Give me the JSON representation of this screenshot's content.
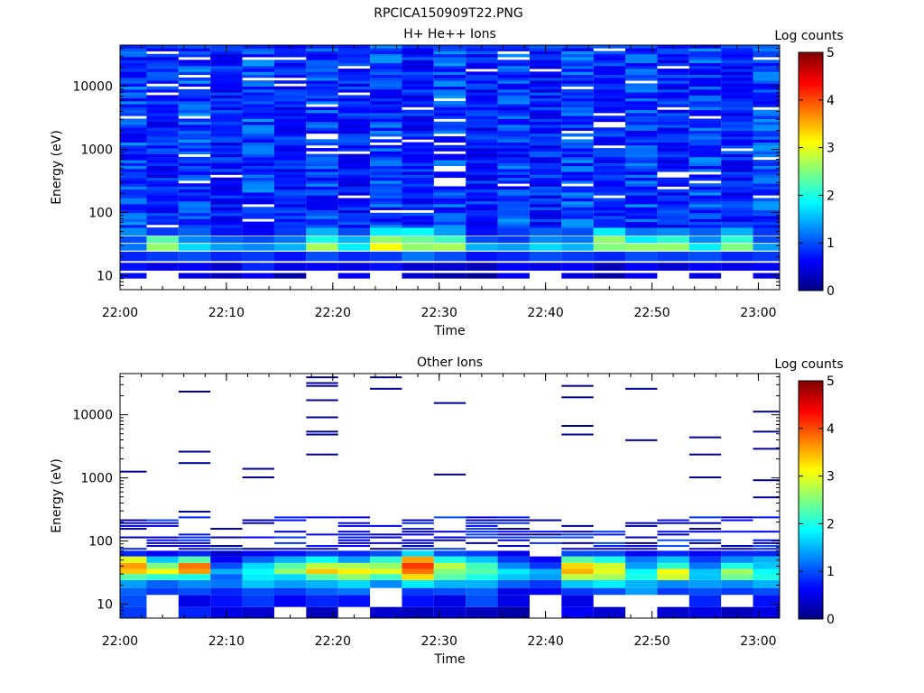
{
  "figure_title": "RPCICA150909T22.PNG",
  "chart_data": [
    {
      "type": "heatmap",
      "title": "H+ He++ Ions",
      "xlabel": "Time",
      "ylabel": "Energy (eV)",
      "x_ticks": [
        "22:00",
        "22:10",
        "22:20",
        "22:30",
        "22:40",
        "22:50",
        "23:00"
      ],
      "x_range": [
        "22:00",
        "23:02"
      ],
      "y_scale": "log",
      "y_ticks": [
        "10",
        "100",
        "1000",
        "10000"
      ],
      "y_range": [
        6,
        45000
      ],
      "colorbar": {
        "label": "Log counts",
        "range": [
          0,
          5
        ],
        "ticks": [
          "0",
          "1",
          "2",
          "3",
          "4",
          "5"
        ]
      },
      "time_bins": [
        "22:01",
        "22:04",
        "22:07",
        "22:10",
        "22:13",
        "22:16",
        "22:19",
        "22:22",
        "22:25",
        "22:28",
        "22:31",
        "22:34",
        "22:37",
        "22:40",
        "22:43",
        "22:46",
        "22:49",
        "22:52",
        "22:55",
        "22:58",
        "23:01"
      ],
      "low_energy_rows": [
        {
          "energy_ev": [
            9,
            11
          ],
          "values": [
            0.7,
            null,
            0.5,
            0.3,
            0.6,
            0.2,
            null,
            0.6,
            null,
            0.4,
            0.2,
            0.1,
            0.6,
            null,
            0.5,
            0.2,
            0.6,
            null,
            0.5,
            null,
            0.5
          ]
        },
        {
          "energy_ev": [
            12,
            16
          ],
          "values": [
            0.7,
            0.5,
            0.6,
            0.4,
            0.8,
            0.5,
            0.6,
            0.5,
            0.7,
            0.4,
            0.4,
            0.3,
            0.6,
            0.5,
            0.6,
            0.3,
            0.6,
            0.4,
            0.6,
            0.5,
            0.6
          ]
        },
        {
          "energy_ev": [
            17,
            24
          ],
          "values": [
            0.8,
            0.9,
            1.0,
            0.8,
            0.9,
            0.7,
            1.0,
            0.8,
            0.9,
            1.2,
            1.0,
            0.7,
            0.8,
            1.0,
            0.9,
            0.8,
            1.0,
            0.9,
            1.0,
            0.8,
            0.9
          ]
        },
        {
          "energy_ev": [
            25,
            32
          ],
          "values": [
            1.2,
            2.6,
            1.7,
            1.4,
            1.3,
            1.5,
            2.7,
            1.8,
            3.1,
            2.6,
            2.7,
            1.5,
            1.4,
            1.7,
            1.5,
            2.5,
            2.6,
            2.6,
            1.8,
            2.5,
            1.4
          ]
        },
        {
          "energy_ev": [
            33,
            42
          ],
          "values": [
            1.0,
            2.3,
            1.3,
            1.1,
            1.0,
            1.2,
            2.0,
            1.5,
            2.6,
            2.4,
            2.2,
            1.0,
            0.9,
            1.3,
            1.2,
            2.6,
            1.8,
            2.1,
            1.3,
            2.1,
            1.0
          ]
        },
        {
          "energy_ev": [
            43,
            58
          ],
          "values": [
            1.3,
            0.9,
            1.1,
            0.7,
            0.6,
            0.9,
            1.5,
            1.0,
            1.8,
            1.9,
            1.4,
            0.7,
            0.9,
            1.1,
            1.0,
            1.8,
            1.2,
            1.3,
            1.1,
            1.5,
            0.9
          ]
        }
      ],
      "high_energy_band": {
        "energy_ev": [
          58,
          45000
        ],
        "min_log_counts": 0.2,
        "max_log_counts": 1.4
      }
    },
    {
      "type": "heatmap",
      "title": "Other Ions",
      "xlabel": "Time",
      "ylabel": "Energy (eV)",
      "x_ticks": [
        "22:00",
        "22:10",
        "22:20",
        "22:30",
        "22:40",
        "22:50",
        "23:00"
      ],
      "x_range": [
        "22:00",
        "23:02"
      ],
      "y_scale": "log",
      "y_ticks": [
        "10",
        "100",
        "1000",
        "10000"
      ],
      "y_range": [
        6,
        45000
      ],
      "colorbar": {
        "label": "Log counts",
        "range": [
          0,
          5
        ],
        "ticks": [
          "0",
          "1",
          "2",
          "3",
          "4",
          "5"
        ]
      },
      "time_bins": [
        "22:01",
        "22:04",
        "22:07",
        "22:10",
        "22:13",
        "22:16",
        "22:19",
        "22:22",
        "22:25",
        "22:28",
        "22:31",
        "22:34",
        "22:37",
        "22:40",
        "22:43",
        "22:46",
        "22:49",
        "22:52",
        "22:55",
        "22:58",
        "23:01"
      ],
      "low_energy_rows": [
        {
          "energy_ev": [
            6,
            9
          ],
          "values": [
            0.9,
            null,
            0.8,
            0.5,
            0.4,
            null,
            0.3,
            null,
            0.4,
            0.3,
            0.4,
            0.3,
            0.2,
            null,
            0.6,
            0.4,
            null,
            0.4,
            0.5,
            0.3,
            0.5
          ]
        },
        {
          "energy_ev": [
            9,
            14
          ],
          "values": [
            1.0,
            null,
            0.5,
            0.7,
            0.9,
            0.6,
            0.8,
            0.7,
            null,
            0.7,
            0.5,
            1.0,
            0.5,
            null,
            0.5,
            null,
            null,
            null,
            0.8,
            null,
            0.7
          ]
        },
        {
          "energy_ev": [
            14,
            18
          ],
          "values": [
            1.1,
            0.9,
            1.0,
            0.8,
            1.0,
            0.9,
            1.1,
            1.2,
            null,
            0.9,
            1.0,
            1.1,
            0.5,
            0.6,
            0.9,
            1.0,
            1.4,
            0.9,
            1.0,
            0.9,
            1.0
          ]
        },
        {
          "energy_ev": [
            18,
            24
          ],
          "values": [
            1.4,
            1.1,
            1.3,
            1.2,
            1.6,
            1.4,
            1.5,
            1.7,
            1.3,
            1.8,
            1.5,
            1.5,
            1.1,
            0.9,
            1.6,
            1.8,
            1.5,
            1.3,
            1.4,
            1.3,
            1.5
          ]
        },
        {
          "energy_ev": [
            24,
            30
          ],
          "values": [
            2.3,
            2.1,
            2.0,
            1.1,
            1.8,
            1.7,
            2.3,
            2.6,
            2.2,
            3.3,
            2.3,
            2.0,
            1.6,
            1.4,
            2.8,
            2.7,
            2.0,
            2.9,
            1.6,
            2.4,
            2.0
          ]
        },
        {
          "energy_ev": [
            30,
            36
          ],
          "values": [
            3.4,
            3.1,
            3.6,
            1.5,
            1.9,
            2.6,
            3.4,
            3.2,
            3.0,
            3.8,
            2.5,
            2.3,
            1.8,
            1.5,
            3.5,
            3.0,
            1.9,
            3.1,
            1.6,
            2.7,
            1.9
          ]
        },
        {
          "energy_ev": [
            36,
            45
          ],
          "values": [
            3.6,
            2.5,
            3.8,
            1.0,
            1.7,
            2.3,
            2.8,
            2.7,
            2.6,
            4.1,
            2.8,
            2.2,
            1.3,
            0.9,
            3.3,
            2.9,
            1.4,
            2.1,
            1.2,
            2.0,
            1.6
          ]
        },
        {
          "energy_ev": [
            45,
            57
          ],
          "values": [
            3.0,
            1.6,
            2.3,
            0.6,
            1.1,
            1.5,
            1.9,
            1.4,
            2.1,
            3.6,
            2.0,
            1.6,
            0.9,
            0.6,
            2.3,
            2.0,
            1.2,
            1.6,
            0.9,
            1.3,
            1.5
          ]
        },
        {
          "energy_ev": [
            57,
            70
          ],
          "values": [
            0.8,
            0.6,
            0.8,
            0.4,
            0.6,
            0.7,
            0.9,
            0.8,
            1.0,
            1.7,
            1.0,
            0.9,
            0.5,
            null,
            1.0,
            1.0,
            0.6,
            0.8,
            0.6,
            0.8,
            0.8
          ]
        }
      ],
      "sparse_band": {
        "energy_ev": [
          70,
          45000
        ],
        "min_log_counts": 0.05,
        "max_log_counts": 1.0,
        "note": "isolated thin lines, mostly empty above ~200 eV"
      }
    }
  ]
}
